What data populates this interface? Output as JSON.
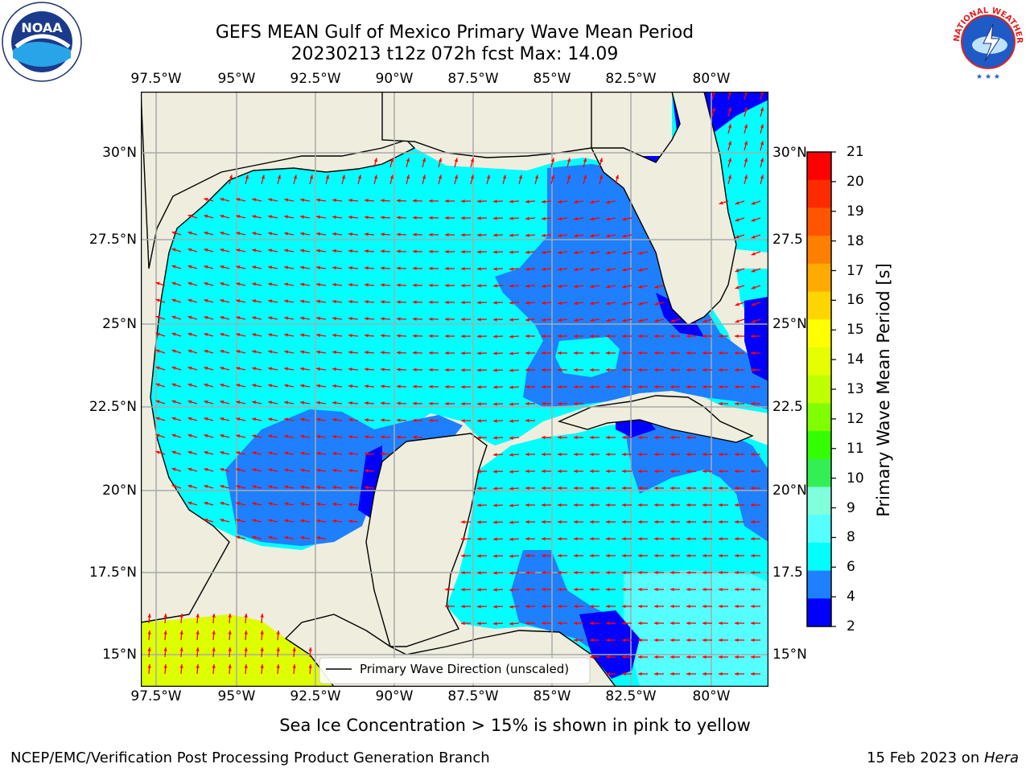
{
  "title": {
    "line1": "GEFS MEAN Gulf of Mexico Primary Wave Mean Period",
    "line2": "20230213 t12z 072h fcst   Max: 14.09"
  },
  "map": {
    "lon_range": [
      -98,
      -78.5
    ],
    "lat_range": [
      14,
      31.8
    ],
    "lon_ticks": [
      "97.5°W",
      "95°W",
      "92.5°W",
      "90°W",
      "87.5°W",
      "85°W",
      "82.5°W",
      "80°W"
    ],
    "lat_ticks": [
      "30°N",
      "27.5°N",
      "25°N",
      "22.5°N",
      "20°N",
      "17.5°N",
      "15°N"
    ],
    "right_lat_ticks": [
      "30°N",
      "27.5",
      "25°N",
      "22.5",
      "20°N",
      "17.5",
      "15°N"
    ],
    "legend_label": "Primary Wave Direction (unscaled)",
    "colors": {
      "land": "#efedde",
      "ocean_light": "#00ffff",
      "ocean_mid": "#1e7fff",
      "ocean_deep": "#0000ff",
      "arrow": "#ff0000",
      "high": "#ddff00"
    }
  },
  "colorbar": {
    "label": "Primary Wave Mean Period [s]",
    "ticks": [
      "21",
      "20",
      "19",
      "18",
      "17",
      "16",
      "15",
      "14",
      "13",
      "12",
      "11",
      "10",
      "9",
      "8",
      "6",
      "4",
      "2"
    ],
    "colors": [
      "#ff0000",
      "#ff2b00",
      "#ff5500",
      "#ff7f00",
      "#ffaa00",
      "#ffd400",
      "#ffff00",
      "#e5ff00",
      "#bfff00",
      "#80ff00",
      "#33ff00",
      "#33ee55",
      "#80ffdd",
      "#55ffff",
      "#00ffff",
      "#1e7fff",
      "#0000ff"
    ]
  },
  "logos": {
    "noaa": "NOAA",
    "nws": "NATIONAL WEATHER SERVICE"
  },
  "caption": "Sea Ice Concentration > 15% is shown in pink to yellow",
  "footer": {
    "left": "NCEP/EMC/Verification Post Processing Product Generation Branch",
    "right_prefix": "15 Feb 2023 on ",
    "right_host": "Hera"
  }
}
